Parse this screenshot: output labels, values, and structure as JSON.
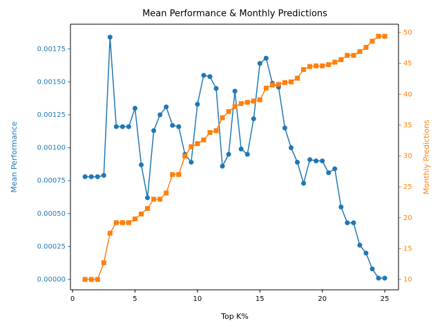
{
  "chart_data": {
    "type": "line",
    "title": "Mean Performance & Monthly Predictions",
    "xlabel": "Top K%",
    "ylabel": "Mean Performance",
    "y2label": "Monthly Predictions",
    "x": [
      1,
      1.5,
      2,
      2.5,
      3,
      3.5,
      4,
      4.5,
      5,
      5.5,
      6,
      6.5,
      7,
      7.5,
      8,
      8.5,
      9,
      9.5,
      10,
      10.5,
      11,
      11.5,
      12,
      12.5,
      13,
      13.5,
      14,
      14.5,
      15,
      15.5,
      16,
      16.5,
      17,
      17.5,
      18,
      18.5,
      19,
      19.5,
      20,
      20.5,
      21,
      21.5,
      22,
      22.5,
      23,
      23.5,
      24,
      24.5,
      25
    ],
    "series": [
      {
        "name": "Mean Performance",
        "color": "#1f77b4",
        "marker": "circle",
        "values": [
          0.00078,
          0.00078,
          0.00078,
          0.00079,
          0.00184,
          0.00116,
          0.00116,
          0.00116,
          0.0013,
          0.00087,
          0.00062,
          0.00113,
          0.00125,
          0.00131,
          0.00117,
          0.00116,
          0.00095,
          0.00089,
          0.00133,
          0.00155,
          0.00154,
          0.00145,
          0.00086,
          0.00095,
          0.00143,
          0.00099,
          0.00095,
          0.00122,
          0.00164,
          0.00168,
          0.00149,
          0.00146,
          0.00115,
          0.001,
          0.00089,
          0.00073,
          0.00091,
          0.0009,
          0.0009,
          0.00081,
          0.00084,
          0.00055,
          0.00043,
          0.00043,
          0.00026,
          0.0002,
          8e-05,
          1e-05,
          1e-05
        ]
      },
      {
        "name": "Monthly Predictions",
        "color": "#ff7f0e",
        "marker": "square",
        "axis": "y2",
        "values": [
          10,
          10,
          10,
          12.7,
          17.5,
          19.2,
          19.2,
          19.2,
          19.8,
          20.6,
          21.5,
          23,
          23,
          24,
          27,
          27,
          30,
          31.5,
          32,
          32.6,
          33.8,
          34.1,
          36.2,
          37.2,
          38,
          38.5,
          38.7,
          38.9,
          39.1,
          41,
          41.5,
          41.6,
          41.9,
          42,
          42.6,
          44,
          44.5,
          44.6,
          44.6,
          44.8,
          45.2,
          45.6,
          46.3,
          46.3,
          46.9,
          47.6,
          48.6,
          49.4,
          49.4
        ]
      }
    ],
    "xlim": [
      -0.17,
      26.1
    ],
    "xticks": [
      0,
      5,
      10,
      15,
      20,
      25
    ],
    "ylim": [
      -7.88e-05,
      0.001938
    ],
    "yticks": [
      {
        "value": 0,
        "label": "0.00000"
      },
      {
        "value": 0.00025,
        "label": "0.00025"
      },
      {
        "value": 0.0005,
        "label": "0.00050"
      },
      {
        "value": 0.00075,
        "label": "0.00075"
      },
      {
        "value": 0.001,
        "label": "0.00100"
      },
      {
        "value": 0.00125,
        "label": "0.00125"
      },
      {
        "value": 0.0015,
        "label": "0.00150"
      },
      {
        "value": 0.00175,
        "label": "0.00175"
      }
    ],
    "y2lim": [
      8.32,
      51.35
    ],
    "y2ticks": [
      10,
      15,
      20,
      25,
      30,
      35,
      40,
      45,
      50
    ]
  }
}
